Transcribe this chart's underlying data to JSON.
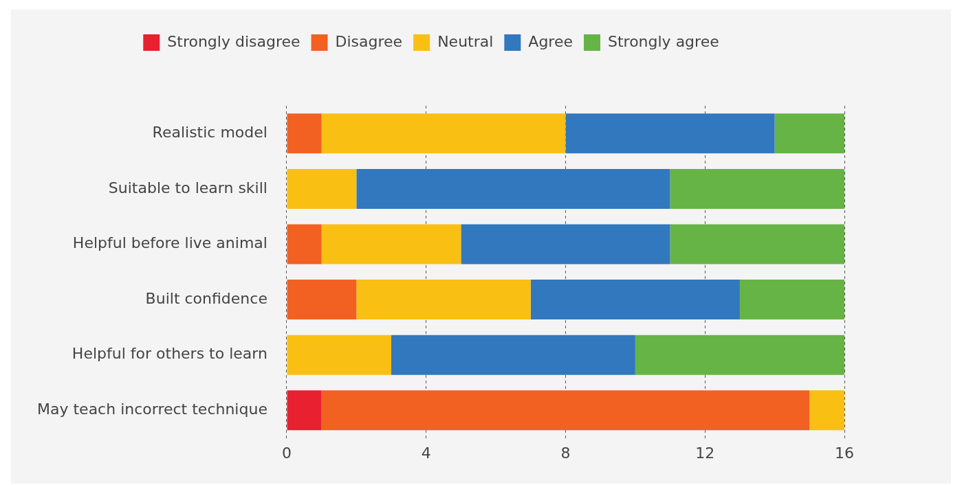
{
  "chart_data": {
    "type": "bar",
    "orientation": "horizontal",
    "stacked": true,
    "grid": "x",
    "legend": "top",
    "categories": [
      "Realistic model",
      "Suitable to learn skill",
      "Helpful before live animal",
      "Built confidence",
      "Helpful for others to learn",
      "May teach incorrect technique"
    ],
    "series": [
      {
        "name": "Strongly disagree",
        "color": "#e8202f",
        "values": [
          0,
          0,
          0,
          0,
          0,
          1
        ]
      },
      {
        "name": "Disagree",
        "color": "#f26122",
        "values": [
          1,
          0,
          1,
          2,
          0,
          14
        ]
      },
      {
        "name": "Neutral",
        "color": "#f9c013",
        "values": [
          7,
          2,
          4,
          5,
          3,
          1
        ]
      },
      {
        "name": "Agree",
        "color": "#3278be",
        "values": [
          6,
          9,
          6,
          6,
          7,
          0
        ]
      },
      {
        "name": "Strongly agree",
        "color": "#66b446",
        "values": [
          2,
          5,
          5,
          3,
          6,
          0
        ]
      }
    ],
    "xlim": [
      0,
      16
    ],
    "xticks": [
      0,
      4,
      8,
      12,
      16
    ]
  }
}
